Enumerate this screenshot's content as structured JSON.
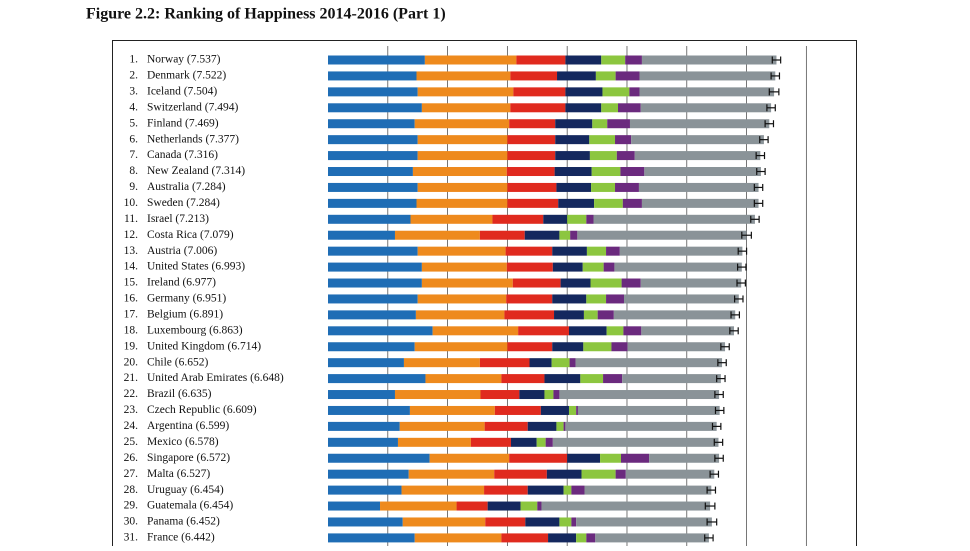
{
  "chart_data": {
    "type": "stacked-hbar",
    "title": "Figure 2.2: Ranking of Happiness 2014-2016 (Part 1)",
    "ranks": [
      "1.",
      "2.",
      "3.",
      "4.",
      "5.",
      "6.",
      "7.",
      "8.",
      "9.",
      "10.",
      "11.",
      "12.",
      "13.",
      "14.",
      "15.",
      "16.",
      "17.",
      "18.",
      "19.",
      "20.",
      "21.",
      "22.",
      "23.",
      "24.",
      "25.",
      "26.",
      "27.",
      "28.",
      "29.",
      "30.",
      "31."
    ],
    "categories": [
      "Norway (7.537)",
      "Denmark (7.522)",
      "Iceland (7.504)",
      "Switzerland (7.494)",
      "Finland (7.469)",
      "Netherlands (7.377)",
      "Canada (7.316)",
      "New Zealand (7.314)",
      "Australia (7.284)",
      "Sweden (7.284)",
      "Israel (7.213)",
      "Costa Rica (7.079)",
      "Austria (7.006)",
      "United States (6.993)",
      "Ireland (6.977)",
      "Germany (6.951)",
      "Belgium (6.891)",
      "Luxembourg (6.863)",
      "United Kingdom (6.714)",
      "Chile (6.652)",
      "United Arab Emirates (6.648)",
      "Brazil (6.635)",
      "Czech Republic (6.609)",
      "Argentina (6.599)",
      "Mexico (6.578)",
      "Singapore (6.572)",
      "Malta (6.527)",
      "Uruguay (6.454)",
      "Guatemala (6.454)",
      "Panama (6.452)",
      "France (6.442)"
    ],
    "series": [
      {
        "color": "#1f6db5",
        "values": [
          1.62,
          1.48,
          1.5,
          1.57,
          1.45,
          1.5,
          1.5,
          1.42,
          1.5,
          1.48,
          1.38,
          1.12,
          1.5,
          1.57,
          1.57,
          1.5,
          1.47,
          1.75,
          1.45,
          1.27,
          1.63,
          1.12,
          1.37,
          1.2,
          1.17,
          1.7,
          1.35,
          1.23,
          0.87,
          1.25,
          1.45
        ]
      },
      {
        "color": "#ee8a1d",
        "values": [
          1.53,
          1.57,
          1.6,
          1.48,
          1.58,
          1.5,
          1.5,
          1.57,
          1.5,
          1.52,
          1.37,
          1.42,
          1.47,
          1.42,
          1.52,
          1.48,
          1.48,
          1.43,
          1.55,
          1.27,
          1.27,
          1.43,
          1.42,
          1.42,
          1.22,
          1.33,
          1.43,
          1.38,
          1.28,
          1.38,
          1.45
        ]
      },
      {
        "color": "#e02a1e",
        "values": [
          0.82,
          0.78,
          0.87,
          0.92,
          0.77,
          0.8,
          0.8,
          0.8,
          0.82,
          0.85,
          0.85,
          0.75,
          0.78,
          0.77,
          0.8,
          0.77,
          0.83,
          0.85,
          0.75,
          0.83,
          0.72,
          0.65,
          0.77,
          0.72,
          0.67,
          0.97,
          0.88,
          0.73,
          0.52,
          0.67,
          0.78
        ]
      },
      {
        "color": "#14285e",
        "values": [
          0.6,
          0.65,
          0.62,
          0.6,
          0.62,
          0.57,
          0.58,
          0.62,
          0.58,
          0.6,
          0.4,
          0.58,
          0.58,
          0.5,
          0.5,
          0.57,
          0.5,
          0.63,
          0.52,
          0.37,
          0.6,
          0.42,
          0.47,
          0.48,
          0.43,
          0.55,
          0.58,
          0.6,
          0.55,
          0.57,
          0.47
        ]
      },
      {
        "color": "#8cc63f",
        "values": [
          0.4,
          0.33,
          0.45,
          0.28,
          0.25,
          0.43,
          0.45,
          0.48,
          0.4,
          0.48,
          0.32,
          0.18,
          0.32,
          0.35,
          0.52,
          0.33,
          0.23,
          0.28,
          0.47,
          0.3,
          0.38,
          0.15,
          0.12,
          0.12,
          0.15,
          0.35,
          0.57,
          0.13,
          0.28,
          0.2,
          0.17
        ]
      },
      {
        "color": "#6b2a7e",
        "values": [
          0.28,
          0.4,
          0.17,
          0.38,
          0.38,
          0.27,
          0.3,
          0.4,
          0.4,
          0.32,
          0.12,
          0.12,
          0.23,
          0.18,
          0.32,
          0.3,
          0.27,
          0.3,
          0.27,
          0.1,
          0.32,
          0.1,
          0.03,
          0.03,
          0.12,
          0.47,
          0.17,
          0.22,
          0.07,
          0.08,
          0.15
        ]
      },
      {
        "color": "#8a9398",
        "values": [
          2.25,
          2.27,
          2.25,
          2.18,
          2.33,
          2.22,
          2.1,
          1.95,
          2.0,
          1.95,
          2.7,
          2.83,
          2.05,
          2.13,
          1.68,
          1.92,
          2.03,
          1.55,
          1.63,
          2.45,
          1.65,
          2.67,
          2.37,
          2.53,
          2.77,
          1.17,
          1.48,
          2.12,
          2.82,
          2.27,
          1.9
        ]
      }
    ],
    "errors": [
      0.07,
      0.07,
      0.08,
      0.07,
      0.07,
      0.07,
      0.07,
      0.07,
      0.07,
      0.07,
      0.07,
      0.08,
      0.07,
      0.07,
      0.07,
      0.07,
      0.07,
      0.07,
      0.07,
      0.07,
      0.07,
      0.07,
      0.07,
      0.07,
      0.07,
      0.07,
      0.07,
      0.07,
      0.08,
      0.08,
      0.07
    ],
    "xlim": [
      0,
      8.83
    ],
    "xgrid": [
      1,
      2,
      3,
      4,
      5,
      6,
      7,
      8
    ]
  }
}
